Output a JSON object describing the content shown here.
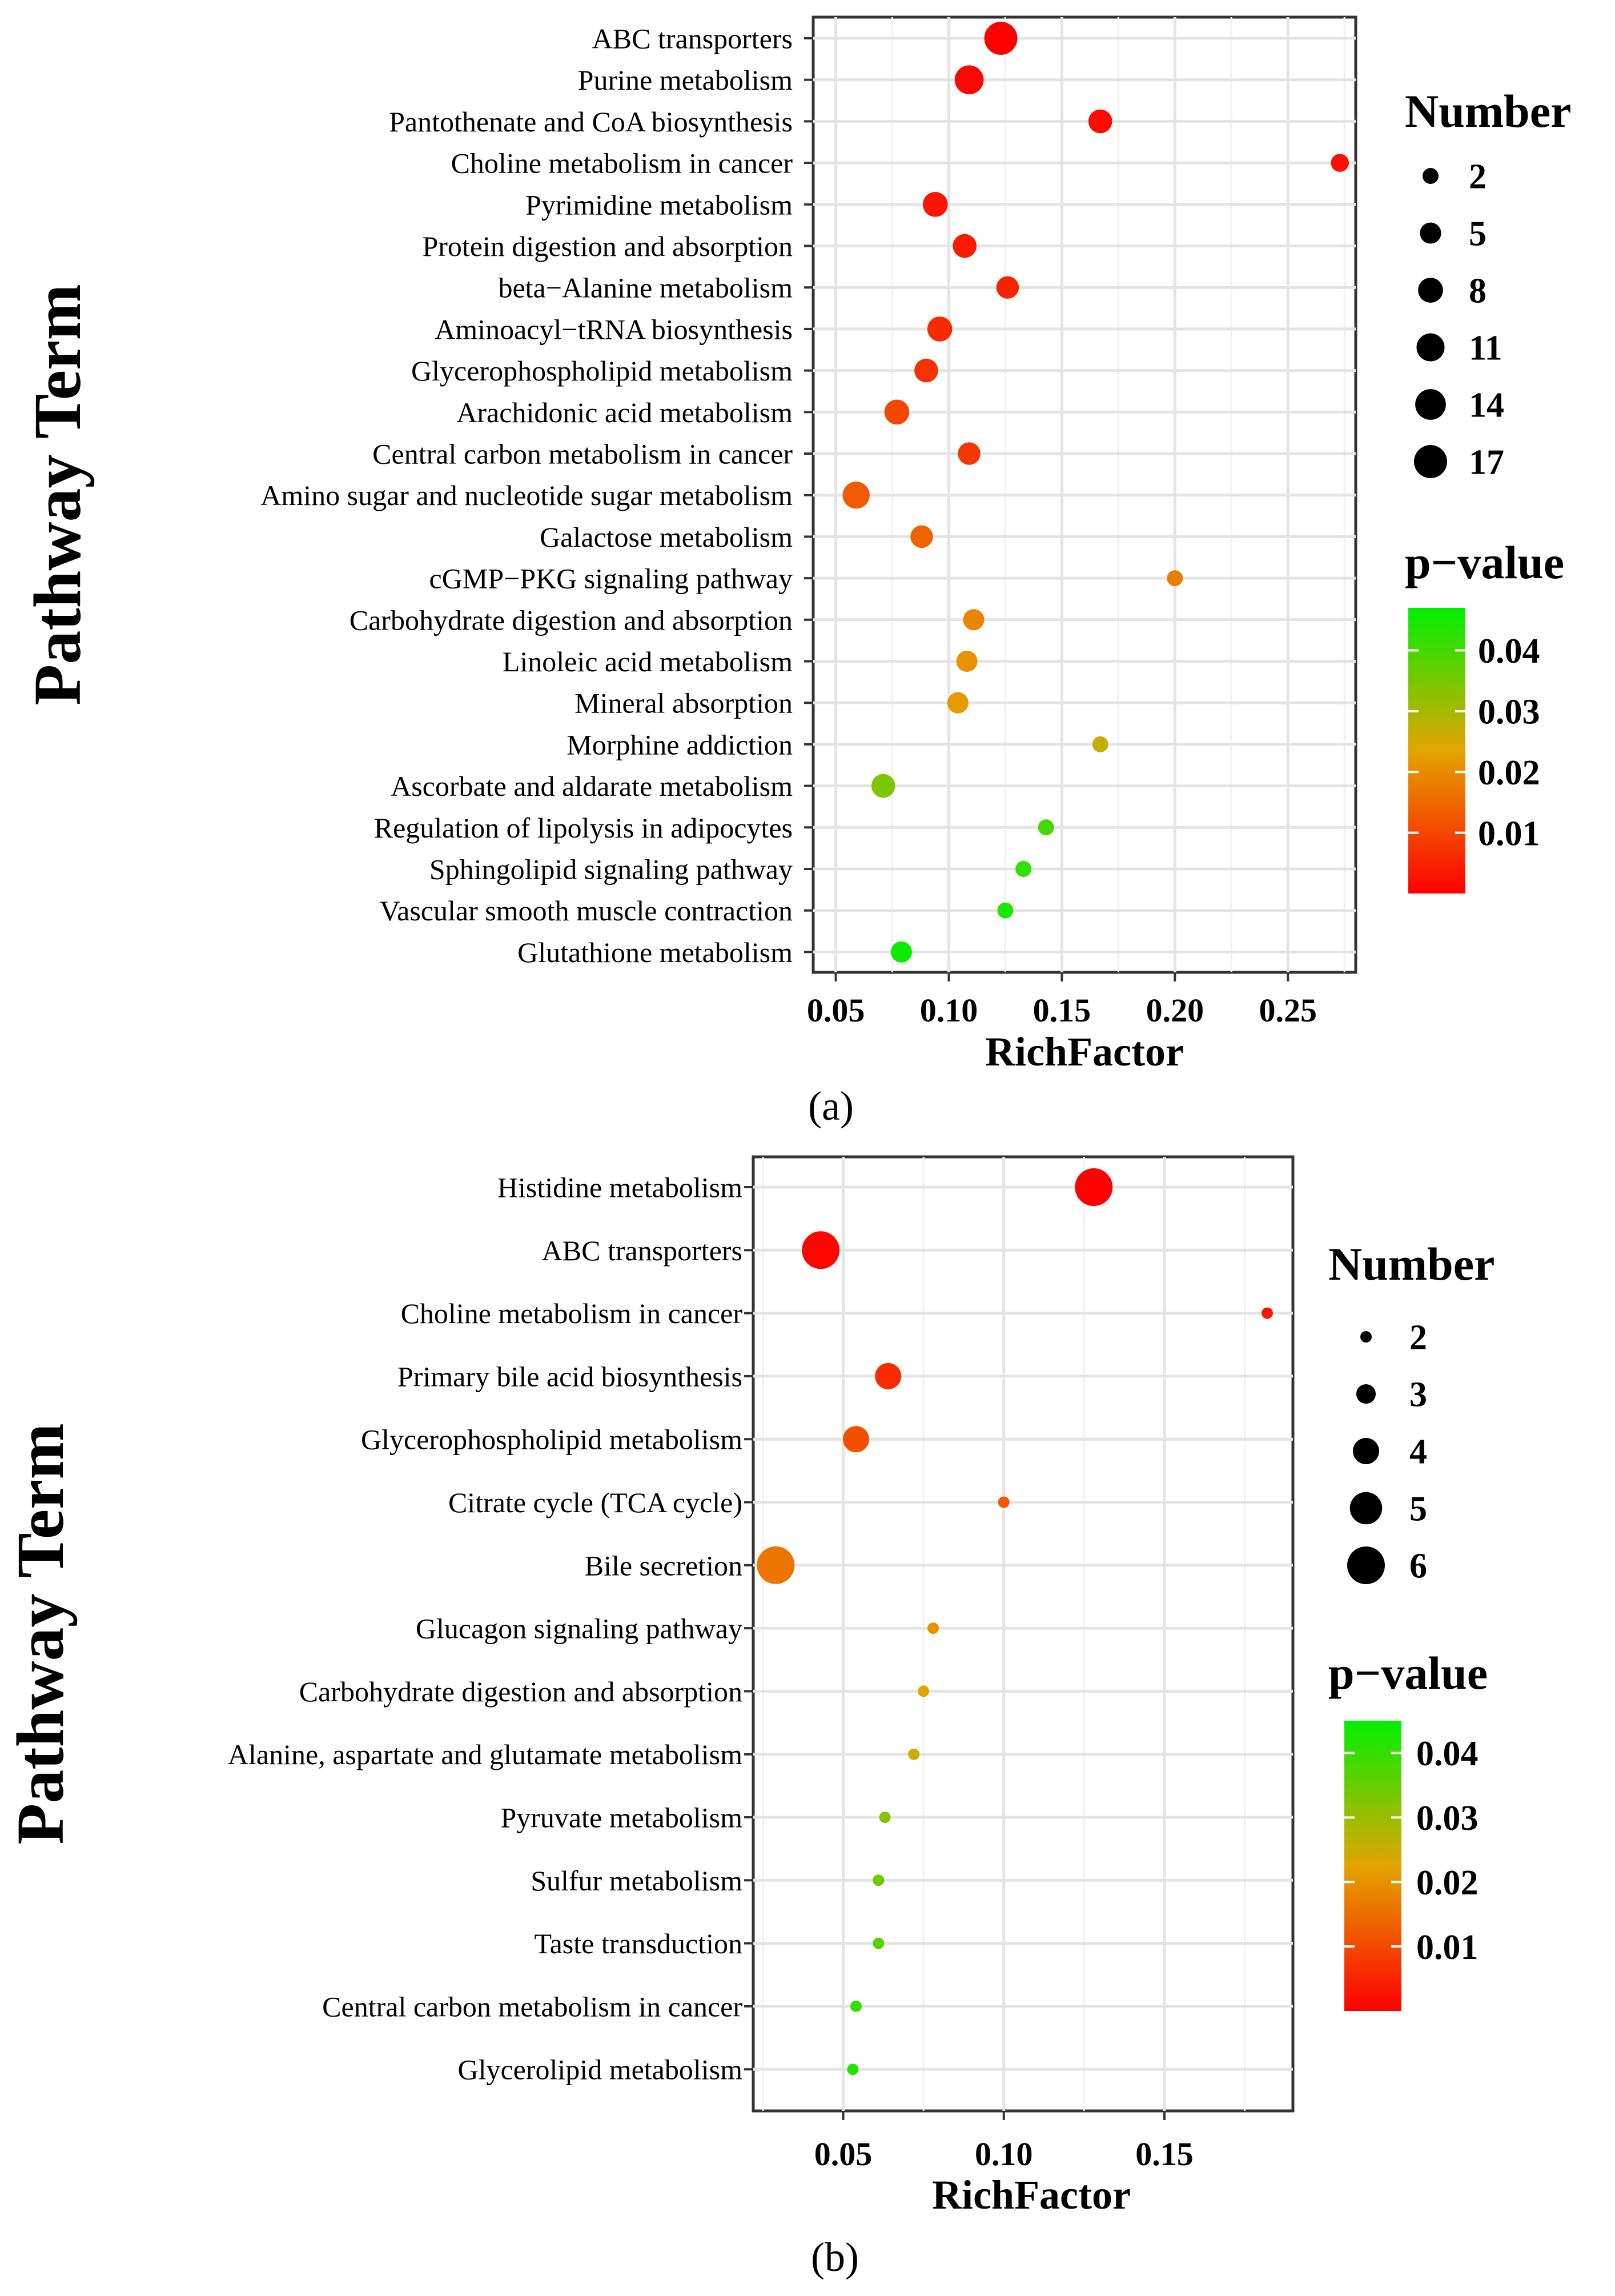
{
  "chart_data": [
    {
      "id": "a",
      "type": "scatter",
      "caption": "(a)",
      "xlabel": "RichFactor",
      "ylabel": "Pathway Term",
      "xlim": [
        0.04,
        0.28
      ],
      "xticks": [
        0.05,
        0.1,
        0.15,
        0.2,
        0.25
      ],
      "xtick_labels": [
        "0.05",
        "0.10",
        "0.15",
        "0.20",
        "0.25"
      ],
      "grid": true,
      "pathways": [
        "ABC transporters",
        "Purine metabolism",
        "Pantothenate and CoA biosynthesis",
        "Choline metabolism in cancer",
        "Pyrimidine metabolism",
        "Protein digestion and absorption",
        "beta−Alanine metabolism",
        "Aminoacyl−tRNA biosynthesis",
        "Glycerophospholipid metabolism",
        "Arachidonic acid metabolism",
        "Central carbon metabolism in cancer",
        "Amino sugar and nucleotide sugar metabolism",
        "Galactose metabolism",
        "cGMP−PKG signaling pathway",
        "Carbohydrate digestion and absorption",
        "Linoleic acid metabolism",
        "Mineral absorption",
        "Morphine addiction",
        "Ascorbate and aldarate metabolism",
        "Regulation of lipolysis in adipocytes",
        "Sphingolipid signaling pathway",
        "Vascular smooth muscle contraction",
        "Glutathione metabolism"
      ],
      "rich_factor": [
        0.123,
        0.109,
        0.167,
        0.273,
        0.094,
        0.107,
        0.126,
        0.096,
        0.09,
        0.077,
        0.109,
        0.059,
        0.088,
        0.2,
        0.111,
        0.108,
        0.104,
        0.167,
        0.071,
        0.143,
        0.133,
        0.125,
        0.079
      ],
      "number": [
        17,
        12,
        7,
        3,
        8,
        7,
        6,
        8,
        7,
        8,
        6,
        10,
        6,
        2,
        5,
        5,
        5,
        2,
        7,
        2,
        2,
        2,
        5
      ],
      "p_value": [
        0.0003,
        0.001,
        0.0015,
        0.002,
        0.003,
        0.004,
        0.005,
        0.006,
        0.007,
        0.01,
        0.008,
        0.013,
        0.014,
        0.018,
        0.019,
        0.021,
        0.022,
        0.027,
        0.034,
        0.04,
        0.042,
        0.044,
        0.046
      ],
      "size_legend": {
        "title": "Number",
        "values": [
          2,
          5,
          8,
          11,
          14,
          17
        ],
        "labels": [
          "2",
          "5",
          "8",
          "11",
          "14",
          "17"
        ]
      },
      "color_legend": {
        "title": "p−value",
        "range": [
          0.0,
          0.047
        ],
        "ticks": [
          0.04,
          0.03,
          0.02,
          0.01
        ],
        "tick_labels": [
          "0.04",
          "0.03",
          "0.02",
          "0.01"
        ],
        "colors": [
          "#ff0000",
          "#e4a400",
          "#00f000"
        ]
      }
    },
    {
      "id": "b",
      "type": "scatter",
      "caption": "(b)",
      "xlabel": "RichFactor",
      "ylabel": "Pathway Term",
      "xlim": [
        0.022,
        0.19
      ],
      "xticks": [
        0.05,
        0.1,
        0.15
      ],
      "xtick_labels": [
        "0.05",
        "0.10",
        "0.15"
      ],
      "grid": true,
      "pathways": [
        "Histidine metabolism",
        "ABC transporters",
        "Choline metabolism in cancer",
        "Primary bile acid biosynthesis",
        "Glycerophospholipid metabolism",
        "Citrate cycle (TCA cycle)",
        "Bile secretion",
        "Glucagon signaling pathway",
        "Carbohydrate digestion and absorption",
        "Alanine, aspartate and glutamate metabolism",
        "Pyruvate metabolism",
        "Sulfur metabolism",
        "Taste transduction",
        "Central carbon metabolism in cancer",
        "Glycerolipid metabolism"
      ],
      "rich_factor": [
        0.128,
        0.043,
        0.182,
        0.064,
        0.054,
        0.1,
        0.029,
        0.078,
        0.075,
        0.072,
        0.063,
        0.061,
        0.061,
        0.054,
        0.053
      ],
      "number": [
        6,
        6,
        2,
        4,
        4,
        2,
        6,
        2,
        2,
        2,
        2,
        2,
        2,
        2,
        2
      ],
      "p_value": [
        0.0003,
        0.001,
        0.003,
        0.006,
        0.011,
        0.012,
        0.016,
        0.02,
        0.023,
        0.025,
        0.032,
        0.034,
        0.036,
        0.04,
        0.042
      ],
      "size_legend": {
        "title": "Number",
        "values": [
          2,
          3,
          4,
          5,
          6
        ],
        "labels": [
          "2",
          "3",
          "4",
          "5",
          "6"
        ]
      },
      "color_legend": {
        "title": "p−value",
        "range": [
          0.0,
          0.045
        ],
        "ticks": [
          0.04,
          0.03,
          0.02,
          0.01
        ],
        "tick_labels": [
          "0.04",
          "0.03",
          "0.02",
          "0.01"
        ],
        "colors": [
          "#ff0000",
          "#e4a400",
          "#00f000"
        ]
      }
    }
  ]
}
